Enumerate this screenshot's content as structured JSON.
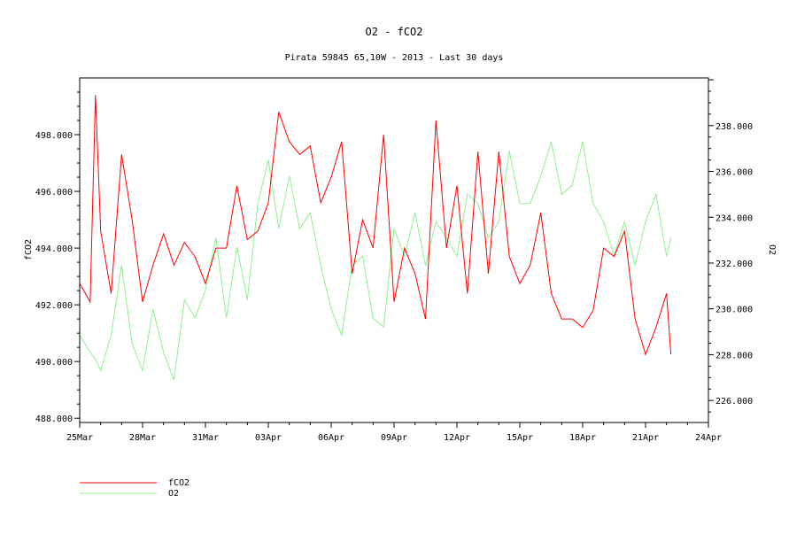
{
  "chart_data": {
    "type": "line",
    "title": "O2 - fCO2",
    "subtitle": "Pirata 59845 65,10W - 2013 - Last 30 days",
    "xlabel": "",
    "ylabel": "fCO2",
    "ylabel_right": "O2",
    "xlim": [
      "2013-03-25T00:00",
      "2013-04-24T00:00"
    ],
    "ylim": [
      487.85,
      500
    ],
    "ylim_right": [
      225.04,
      240.08
    ],
    "grid": false,
    "legend_position": "bottom-left",
    "x_ticks": [
      "25Mar",
      "28Mar",
      "31Mar",
      "03Apr",
      "06Apr",
      "09Apr",
      "12Apr",
      "15Apr",
      "18Apr",
      "21Apr",
      "24Apr"
    ],
    "y_ticks": [
      "488.000",
      "490.000",
      "492.000",
      "494.000",
      "496.000",
      "498.000"
    ],
    "y_ticks_right": [
      "226.000",
      "228.000",
      "230.000",
      "232.000",
      "234.000",
      "236.000",
      "238.000"
    ],
    "x": [
      "2013-03-25T00:00",
      "2013-03-25T12:00",
      "2013-03-25T18:00",
      "2013-03-26T00:00",
      "2013-03-26T12:00",
      "2013-03-27T00:00",
      "2013-03-27T12:00",
      "2013-03-28T00:00",
      "2013-03-28T12:00",
      "2013-03-29T00:00",
      "2013-03-29T12:00",
      "2013-03-30T00:00",
      "2013-03-30T12:00",
      "2013-03-31T00:00",
      "2013-03-31T12:00",
      "2013-04-01T00:00",
      "2013-04-01T12:00",
      "2013-04-02T00:00",
      "2013-04-02T12:00",
      "2013-04-03T00:00",
      "2013-04-03T12:00",
      "2013-04-04T00:00",
      "2013-04-04T12:00",
      "2013-04-05T00:00",
      "2013-04-05T12:00",
      "2013-04-06T00:00",
      "2013-04-06T12:00",
      "2013-04-07T00:00",
      "2013-04-07T12:00",
      "2013-04-08T00:00",
      "2013-04-08T12:00",
      "2013-04-09T00:00",
      "2013-04-09T12:00",
      "2013-04-10T00:00",
      "2013-04-10T12:00",
      "2013-04-11T00:00",
      "2013-04-11T12:00",
      "2013-04-12T00:00",
      "2013-04-12T12:00",
      "2013-04-13T00:00",
      "2013-04-13T12:00",
      "2013-04-14T00:00",
      "2013-04-14T12:00",
      "2013-04-15T00:00",
      "2013-04-15T12:00",
      "2013-04-16T00:00",
      "2013-04-16T12:00",
      "2013-04-17T00:00",
      "2013-04-17T12:00",
      "2013-04-18T00:00",
      "2013-04-18T12:00",
      "2013-04-19T00:00",
      "2013-04-19T12:00",
      "2013-04-20T00:00",
      "2013-04-20T12:00",
      "2013-04-21T00:00",
      "2013-04-21T12:00",
      "2013-04-22T00:00",
      "2013-04-22T05:00"
    ],
    "series": [
      {
        "name": "fCO2",
        "axis": "left",
        "color": "#ff0000",
        "values": [
          492.75,
          492.1,
          499.4,
          494.6,
          492.4,
          497.3,
          495.0,
          492.1,
          493.4,
          494.5,
          493.4,
          494.2,
          493.7,
          492.75,
          494.0,
          494.0,
          496.2,
          494.3,
          494.6,
          495.6,
          498.8,
          497.75,
          497.3,
          497.6,
          495.6,
          496.5,
          497.75,
          493.1,
          495.0,
          494.0,
          498.0,
          492.1,
          494.0,
          493.1,
          491.5,
          498.5,
          494.0,
          496.2,
          492.4,
          497.4,
          493.1,
          497.4,
          493.7,
          492.75,
          493.4,
          495.25,
          492.4,
          491.5,
          491.5,
          491.2,
          491.8,
          494.0,
          493.7,
          494.6,
          491.5,
          490.25,
          491.2,
          492.4,
          490.25
        ]
      },
      {
        "name": "O2",
        "axis": "right",
        "color": "#90ee90",
        "values": [
          228.85,
          228.1,
          227.8,
          227.3,
          228.85,
          231.9,
          228.5,
          227.3,
          230.0,
          228.1,
          226.9,
          230.4,
          229.6,
          230.8,
          233.1,
          229.6,
          232.7,
          230.4,
          234.6,
          236.5,
          233.5,
          235.8,
          233.5,
          234.2,
          231.9,
          230.0,
          228.85,
          231.9,
          232.3,
          229.6,
          229.2,
          233.5,
          232.3,
          234.2,
          231.9,
          233.8,
          233.1,
          232.3,
          235.0,
          234.6,
          233.1,
          233.8,
          236.9,
          234.6,
          234.6,
          235.8,
          237.3,
          235.0,
          235.4,
          237.3,
          234.6,
          233.8,
          232.3,
          233.8,
          231.9,
          233.8,
          235.0,
          232.3,
          233.1
        ]
      }
    ]
  }
}
